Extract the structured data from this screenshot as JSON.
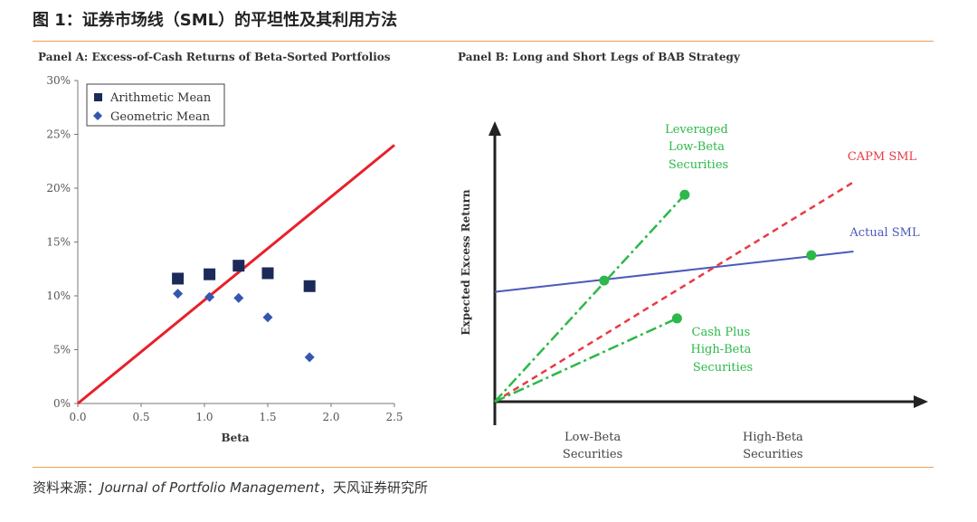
{
  "figure": {
    "title": "图 1：证券市场线（SML）的平坦性及其利用方法",
    "source_prefix": "资料来源：",
    "source_journal": "Journal of Portfolio Management",
    "source_suffix": "，天风证券研究所"
  },
  "colors": {
    "rule": "#f0a050",
    "sml_red": "#e8202a",
    "marker_navy": "#1c2a5a",
    "marker_blue": "#3556b0",
    "green": "#2db84a",
    "actual_sml": "#4a5ab8",
    "capm_red": "#e83a44"
  },
  "chart_data": [
    {
      "type": "scatter",
      "title": "Panel A: Excess-of-Cash Returns of Beta-Sorted Portfolios",
      "xlabel": "Beta",
      "ylabel": "",
      "xlim": [
        0,
        2.5
      ],
      "ylim": [
        0,
        30
      ],
      "xticks": [
        "0.0",
        "0.5",
        "1.0",
        "1.5",
        "2.0",
        "2.5"
      ],
      "yticks": [
        "0%",
        "5%",
        "10%",
        "15%",
        "20%",
        "25%",
        "30%"
      ],
      "legend_position": "top-left",
      "series": [
        {
          "name": "Arithmetic Mean",
          "marker": "square",
          "x": [
            0.79,
            1.04,
            1.27,
            1.5,
            1.83
          ],
          "y": [
            11.6,
            12.0,
            12.8,
            12.1,
            10.9
          ]
        },
        {
          "name": "Geometric Mean",
          "marker": "diamond",
          "x": [
            0.79,
            1.04,
            1.27,
            1.5,
            1.83
          ],
          "y": [
            10.2,
            9.9,
            9.8,
            8.0,
            4.3
          ]
        }
      ],
      "line": {
        "name": "SML",
        "x": [
          0,
          2.5
        ],
        "y": [
          0,
          24
        ]
      }
    },
    {
      "type": "line",
      "title": "Panel B: Long and Short Legs of BAB Strategy",
      "xlabel": "",
      "ylabel": "Expected Excess Return",
      "xlim": [
        0,
        10
      ],
      "ylim": [
        0,
        10
      ],
      "xticks": [
        {
          "at": 2.55,
          "label": "Low-Beta\nSecurities"
        },
        {
          "at": 7.25,
          "label": "High-Beta\nSecurities"
        }
      ],
      "series": [
        {
          "name": "Actual SML",
          "style": "solid",
          "x": [
            0,
            9.35
          ],
          "y": [
            4.35,
            5.95
          ]
        },
        {
          "name": "CAPM SML",
          "style": "dashed",
          "x": [
            0,
            9.35
          ],
          "y": [
            0,
            8.7
          ]
        },
        {
          "name": "Leveraged Low-Beta Securities",
          "style": "dashdot",
          "x": [
            0,
            4.95
          ],
          "y": [
            0,
            8.2
          ]
        },
        {
          "name": "Cash Plus High-Beta Securities",
          "style": "dashdot",
          "x": [
            0,
            4.75
          ],
          "y": [
            0,
            3.3
          ]
        }
      ],
      "points": [
        {
          "x": 2.85,
          "y": 4.8
        },
        {
          "x": 4.95,
          "y": 8.2
        },
        {
          "x": 8.25,
          "y": 5.8
        },
        {
          "x": 4.75,
          "y": 3.3
        }
      ],
      "annotations": [
        {
          "lines": [
            "Leveraged",
            "Low-Beta",
            "Securities"
          ],
          "color": "green"
        },
        {
          "lines": [
            "CAPM SML"
          ],
          "color": "red"
        },
        {
          "lines": [
            "Actual SML"
          ],
          "color": "blue"
        },
        {
          "lines": [
            "Cash Plus",
            "High-Beta",
            "Securities"
          ],
          "color": "green"
        }
      ]
    }
  ]
}
